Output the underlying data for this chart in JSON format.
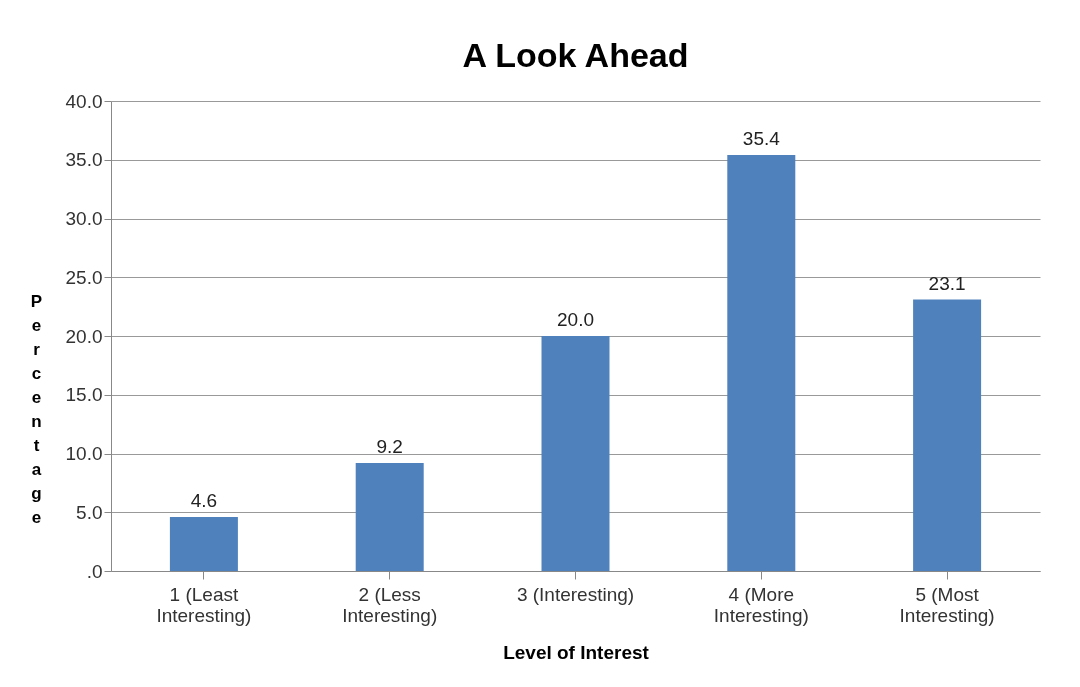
{
  "chart_data": {
    "type": "bar",
    "title": "A Look Ahead",
    "xlabel": "Level of Interest",
    "ylabel": "Percentage",
    "categories": [
      "1 (Least Interesting)",
      "2 (Less Interesting)",
      "3 (Interesting)",
      "4 (More Interesting)",
      "5 (Most Interesting)"
    ],
    "values": [
      4.6,
      9.2,
      20.0,
      35.4,
      23.1
    ],
    "value_labels": [
      "4.6",
      "9.2",
      "20.0",
      "35.4",
      "23.1"
    ],
    "color": "#4f81bd",
    "ylim": [
      0,
      40
    ],
    "yticks": [
      {
        "value": 0,
        "label": ".0"
      },
      {
        "value": 5,
        "label": "5.0"
      },
      {
        "value": 10,
        "label": "10.0"
      },
      {
        "value": 15,
        "label": "15.0"
      },
      {
        "value": 20,
        "label": "20.0"
      },
      {
        "value": 25,
        "label": "25.0"
      },
      {
        "value": 30,
        "label": "30.0"
      },
      {
        "value": 35,
        "label": "35.0"
      },
      {
        "value": 40,
        "label": "40.0"
      }
    ],
    "grid": "y"
  }
}
